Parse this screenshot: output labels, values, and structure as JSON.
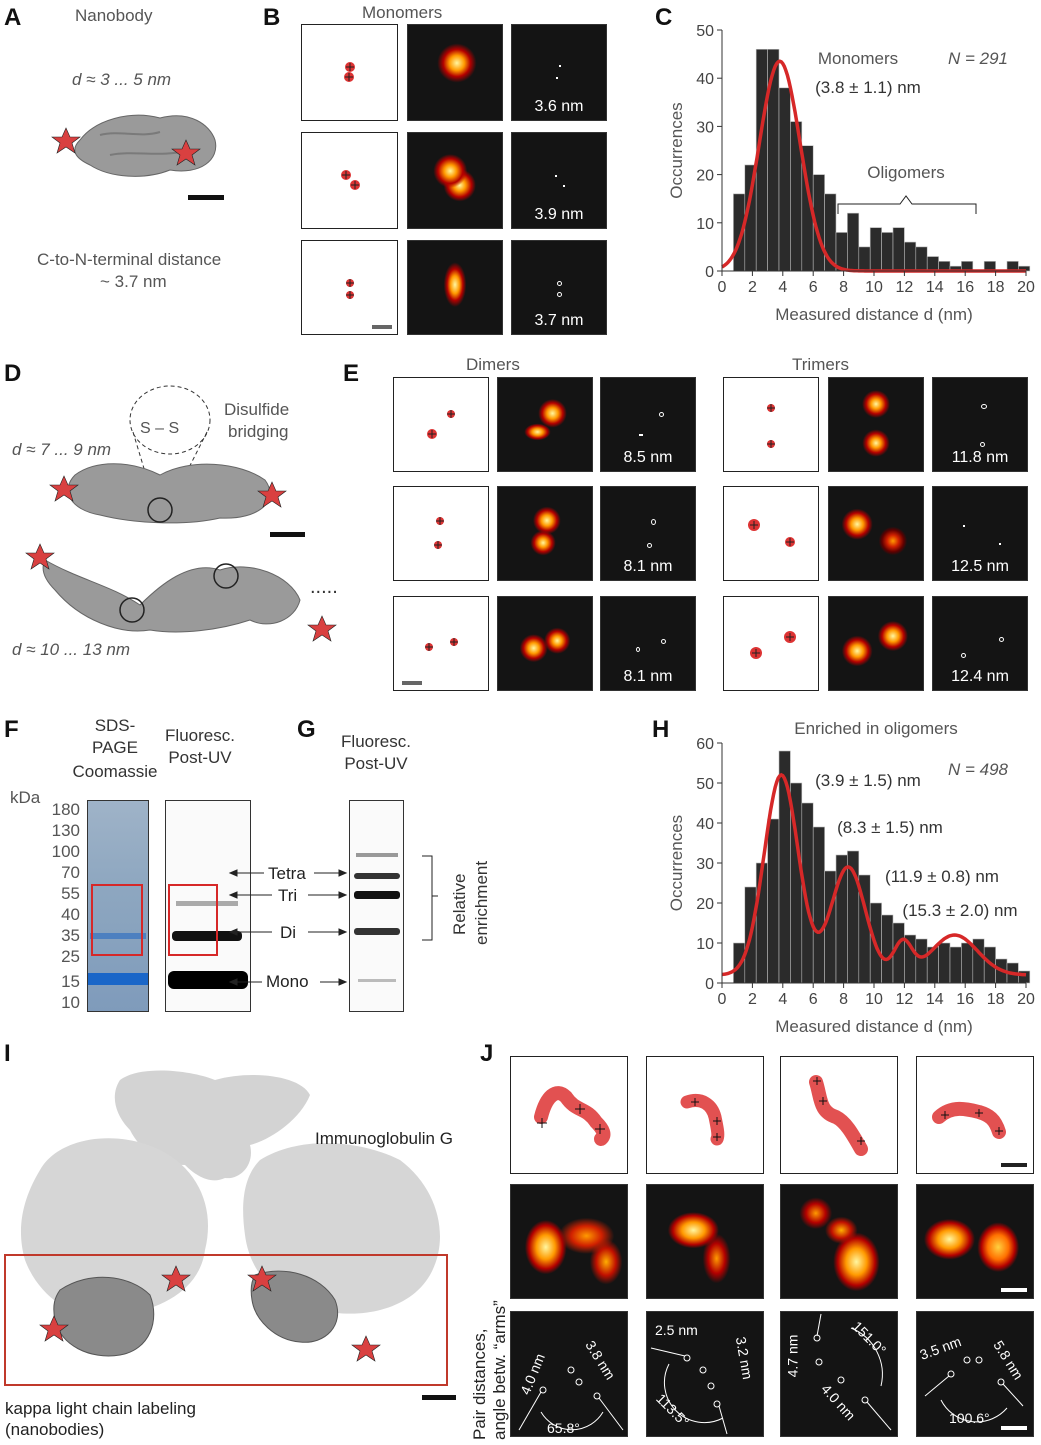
{
  "panels": {
    "A": "A",
    "B": "B",
    "C": "C",
    "D": "D",
    "E": "E",
    "F": "F",
    "G": "G",
    "H": "H",
    "I": "I",
    "J": "J"
  },
  "a": {
    "title": "Nanobody",
    "dist": "d ≈ 3 ... 5 nm",
    "cn1": "C-to-N-terminal distance",
    "cn2": "~ 3.7 nm"
  },
  "b": {
    "title": "Monomers",
    "labels": [
      "3.6 nm",
      "3.9 nm",
      "3.7 nm"
    ]
  },
  "d": {
    "disulfide1": "Disulfide",
    "disulfide2": "bridging",
    "ss": "S – S",
    "d1": "d ≈ 7 ... 9 nm",
    "d2": "d ≈ 10 ... 13 nm",
    "dots": "....."
  },
  "e": {
    "dimers": "Dimers",
    "trimers": "Trimers",
    "dimer_labels": [
      "8.5 nm",
      "8.1 nm",
      "8.1 nm"
    ],
    "trimer_labels": [
      "11.8 nm",
      "12.5 nm",
      "12.4 nm"
    ]
  },
  "f": {
    "sds1": "SDS-",
    "sds2": "PAGE",
    "sds3": "Coomassie",
    "fl1": "Fluoresc.",
    "fl2": "Post-UV",
    "kda": "kDa",
    "markers": [
      "180",
      "130",
      "100",
      "70",
      "55",
      "40",
      "35",
      "25",
      "15",
      "10"
    ],
    "bands": [
      "Tetra",
      "Tri",
      "Di",
      "Mono"
    ]
  },
  "g": {
    "fl1": "Fluoresc.",
    "fl2": "Post-UV",
    "rel1": "Relative",
    "rel2": "enrichment"
  },
  "i": {
    "igg": "Immunoglobulin G",
    "kappa1": "kappa light chain labeling",
    "kappa2": "(nanobodies)"
  },
  "j": {
    "ylabel1": "Pair distances,",
    "ylabel2": "angle betw. “arms”",
    "cells": [
      {
        "a": "4.0 nm",
        "b": "3.8 nm",
        "c": "65.8°"
      },
      {
        "a": "2.5 nm",
        "b": "3.2 nm",
        "c": "113.5°"
      },
      {
        "a": "4.7 nm",
        "b": "151.0°",
        "c": "4.0 nm"
      },
      {
        "a": "3.5 nm",
        "b": "5.8 nm",
        "c": "100.6°"
      }
    ]
  },
  "chart_data": [
    {
      "type": "bar",
      "panel": "C",
      "xlabel": "Measured distance d (nm)",
      "ylabel": "Occurrences",
      "xlim": [
        0,
        20
      ],
      "ylim": [
        0,
        50
      ],
      "xticks": [
        0,
        2,
        4,
        6,
        8,
        10,
        12,
        14,
        16,
        18,
        20
      ],
      "yticks": [
        0,
        10,
        20,
        30,
        40,
        50
      ],
      "annotations": {
        "monomers": "Monomers",
        "fit": "(3.8 ± 1.1) nm",
        "n": "N = 291",
        "oligomers": "Oligomers"
      },
      "bin_width": 0.75,
      "bins_left": [
        0.75,
        1.5,
        2.25,
        3.0,
        3.75,
        4.5,
        5.25,
        6.0,
        6.75,
        7.5,
        8.25,
        9.0,
        9.75,
        10.5,
        11.25,
        12.0,
        12.75,
        13.5,
        14.25,
        15.0,
        15.75,
        16.5,
        17.25,
        18.0,
        18.75,
        19.5
      ],
      "values": [
        16,
        22,
        46,
        46,
        38,
        31,
        26,
        20,
        16,
        8,
        12,
        5,
        9,
        8,
        9,
        6,
        5,
        3,
        2,
        1,
        2,
        0,
        2,
        0,
        2,
        1
      ],
      "fit_curve": {
        "mean": 3.8,
        "sigma": 1.1
      }
    },
    {
      "type": "bar",
      "panel": "H",
      "title": "Enriched in oligomers",
      "xlabel": "Measured distance d (nm)",
      "ylabel": "Occurrences",
      "xlim": [
        0,
        20
      ],
      "ylim": [
        0,
        60
      ],
      "xticks": [
        0,
        2,
        4,
        6,
        8,
        10,
        12,
        14,
        16,
        18,
        20
      ],
      "yticks": [
        0,
        10,
        20,
        30,
        40,
        50,
        60
      ],
      "annotations": {
        "n": "N = 498",
        "p1": "(3.9 ± 1.5) nm",
        "p2": "(8.3 ± 1.5) nm",
        "p3": "(11.9 ± 0.8) nm",
        "p4": "(15.3 ± 2.0) nm"
      },
      "bin_width": 0.75,
      "bins_left": [
        0.75,
        1.5,
        2.25,
        3.0,
        3.75,
        4.5,
        5.25,
        6.0,
        6.75,
        7.5,
        8.25,
        9.0,
        9.75,
        10.5,
        11.25,
        12.0,
        12.75,
        13.5,
        14.25,
        15.0,
        15.75,
        16.5,
        17.25,
        18.0,
        18.75,
        19.5
      ],
      "values": [
        10,
        24,
        30,
        41,
        58,
        50,
        45,
        39,
        28,
        32,
        33,
        27,
        20,
        17,
        15,
        12,
        11,
        9,
        10,
        9,
        10,
        11,
        9,
        6,
        5,
        3
      ],
      "fit_peaks": [
        {
          "mean": 3.9,
          "sigma": 1.5,
          "amp": 50
        },
        {
          "mean": 8.3,
          "sigma": 1.5,
          "amp": 27
        },
        {
          "mean": 11.9,
          "sigma": 0.8,
          "amp": 8
        },
        {
          "mean": 15.3,
          "sigma": 2.0,
          "amp": 10
        }
      ]
    }
  ]
}
